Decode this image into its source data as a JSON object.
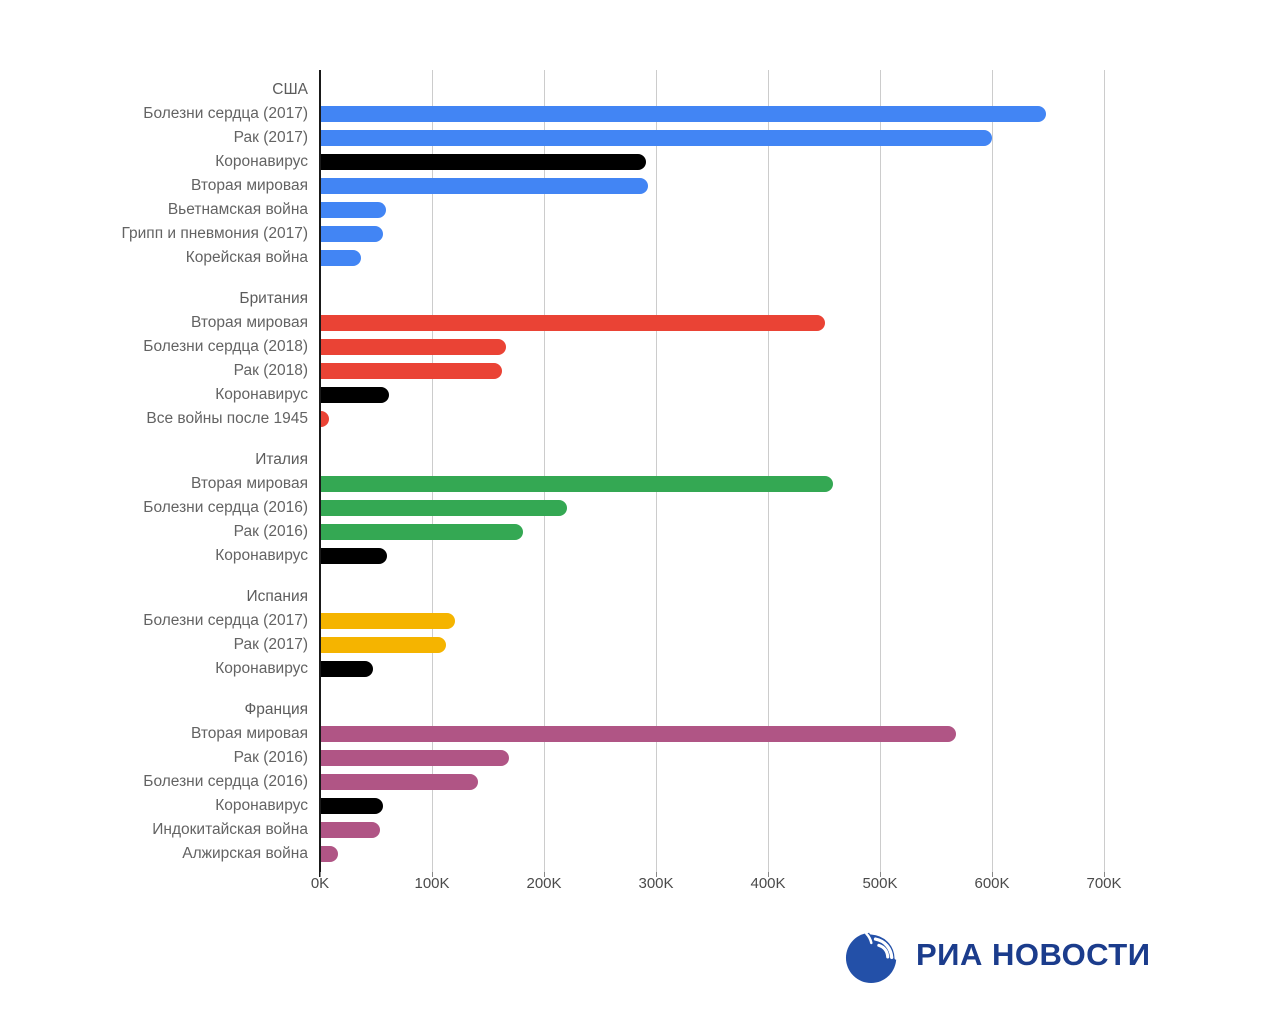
{
  "chart_data": {
    "type": "bar",
    "orientation": "horizontal",
    "title": "",
    "xlabel": "",
    "ylabel": "",
    "grid": true,
    "legend_position": "none",
    "x_axis": {
      "ticks": [
        "0K",
        "100K",
        "200K",
        "300K",
        "400K",
        "500K",
        "600K",
        "700K"
      ],
      "tick_values": [
        0,
        100000,
        200000,
        300000,
        400000,
        500000,
        600000,
        700000
      ],
      "max": 750000
    },
    "groups": [
      {
        "country": "США",
        "color": "#4285F4",
        "rows": [
          {
            "label": "Болезни сердца (2017)",
            "value": 647000,
            "color": "#4285F4"
          },
          {
            "label": "Рак (2017)",
            "value": 599000,
            "color": "#4285F4"
          },
          {
            "label": "Коронавирус",
            "value": 290000,
            "color": "#000000"
          },
          {
            "label": "Вторая мировая",
            "value": 292000,
            "color": "#4285F4"
          },
          {
            "label": "Вьетнамская война",
            "value": 58000,
            "color": "#4285F4"
          },
          {
            "label": "Грипп и пневмония (2017)",
            "value": 55000,
            "color": "#4285F4"
          },
          {
            "label": "Корейская война",
            "value": 36000,
            "color": "#4285F4"
          }
        ]
      },
      {
        "country": "Британия",
        "color": "#EA4335",
        "rows": [
          {
            "label": "Вторая мировая",
            "value": 450000,
            "color": "#EA4335"
          },
          {
            "label": "Болезни сердца (2018)",
            "value": 165000,
            "color": "#EA4335"
          },
          {
            "label": "Рак (2018)",
            "value": 162000,
            "color": "#EA4335"
          },
          {
            "label": "Коронавирус",
            "value": 61000,
            "color": "#000000"
          },
          {
            "label": "Все войны после 1945",
            "value": 7000,
            "color": "#EA4335"
          }
        ]
      },
      {
        "country": "Италия",
        "color": "#34A853",
        "rows": [
          {
            "label": "Вторая мировая",
            "value": 457000,
            "color": "#34A853"
          },
          {
            "label": "Болезни сердца (2016)",
            "value": 220000,
            "color": "#34A853"
          },
          {
            "label": "Рак (2016)",
            "value": 180000,
            "color": "#34A853"
          },
          {
            "label": "Коронавирус",
            "value": 59000,
            "color": "#000000"
          }
        ]
      },
      {
        "country": "Испания",
        "color": "#F5B400",
        "rows": [
          {
            "label": "Болезни сердца (2017)",
            "value": 120000,
            "color": "#F5B400"
          },
          {
            "label": "Рак (2017)",
            "value": 112000,
            "color": "#F5B400"
          },
          {
            "label": "Коронавирус",
            "value": 46000,
            "color": "#000000"
          }
        ]
      },
      {
        "country": "Франция",
        "color": "#B05585",
        "rows": [
          {
            "label": "Вторая мировая",
            "value": 567000,
            "color": "#B05585"
          },
          {
            "label": "Рак (2016)",
            "value": 168000,
            "color": "#B05585"
          },
          {
            "label": "Болезни сердца (2016)",
            "value": 140000,
            "color": "#B05585"
          },
          {
            "label": "Коронавирус",
            "value": 55000,
            "color": "#000000"
          },
          {
            "label": "Индокитайская война",
            "value": 53000,
            "color": "#B05585"
          },
          {
            "label": "Алжирская война",
            "value": 15000,
            "color": "#B05585"
          }
        ]
      }
    ],
    "colors": {
      "usa": "#4285F4",
      "britain": "#EA4335",
      "italy": "#34A853",
      "spain": "#F5B400",
      "france": "#B05585",
      "coronavirus": "#000000",
      "gridline": "#cccccc",
      "axis": "#1a1a1a",
      "label_text": "#636363",
      "brand_blue": "#1b3c8c"
    }
  },
  "footer": {
    "brand": "РИА НОВОСТИ"
  }
}
